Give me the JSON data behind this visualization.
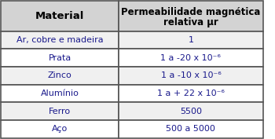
{
  "col1_header": "Material",
  "col2_header": "Permeabilidade magnética\nrelativa μr",
  "rows": [
    [
      "Ar, cobre e madeira",
      "1"
    ],
    [
      "Prata",
      "1 a -20 x 10⁻⁶"
    ],
    [
      "Zinco",
      "1 a -10 x 10⁻⁶"
    ],
    [
      "Alumínio",
      "1 a + 22 x 10⁻⁶"
    ],
    [
      "Ferro",
      "5500"
    ],
    [
      "Aço",
      "500 a 5000"
    ]
  ],
  "header_bg": "#d3d3d3",
  "row_bg_alt": "#f0f0f0",
  "row_bg": "#ffffff",
  "border_color": "#555555",
  "text_color": "#1a1a8c",
  "header_text_color": "#000000",
  "fig_bg": "#ffffff"
}
